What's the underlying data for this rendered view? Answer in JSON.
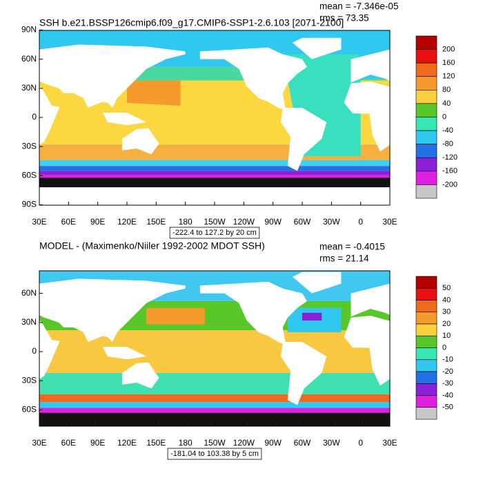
{
  "panels": [
    {
      "title": "SSH b.e21.BSSP126cmip6.f09_g17.CMIP6-SSP1-2.6.103 [2071-2100]",
      "mean": "mean = -7.346e-05",
      "rms": "rms = 73.35",
      "lat_labels": [
        "90N",
        "60N",
        "30N",
        "0",
        "30S",
        "60S",
        "90S"
      ],
      "lon_labels": [
        "30E",
        "60E",
        "90E",
        "120E",
        "150E",
        "180",
        "150W",
        "120W",
        "90W",
        "60W",
        "30W",
        "0",
        "30E"
      ],
      "range": "-222.4 to 127.2 by 20 cm",
      "colorbar": {
        "labels": [
          "200",
          "160",
          "120",
          "80",
          "40",
          "0",
          "-40",
          "-80",
          "-120",
          "-160",
          "-200"
        ],
        "colors": [
          "#b40000",
          "#e81010",
          "#f06a1e",
          "#f59a2c",
          "#fcd03c",
          "#58c828",
          "#38e8b4",
          "#30c8f0",
          "#2470e6",
          "#8a20d8",
          "#e020e0",
          "#c8c8c8"
        ]
      }
    },
    {
      "title": "MODEL - (Maximenko/Niiler 1992-2002 MDOT SSH)",
      "mean": "mean = -0.4015",
      "rms": "rms = 21.14",
      "lat_labels": [
        "60N",
        "30N",
        "0",
        "30S",
        "60S"
      ],
      "lon_labels": [
        "30E",
        "60E",
        "90E",
        "120E",
        "150E",
        "180",
        "150W",
        "120W",
        "90W",
        "60W",
        "30W",
        "0",
        "30E"
      ],
      "range": "-181.04 to 103.38 by 5 cm",
      "colorbar": {
        "labels": [
          "50",
          "40",
          "30",
          "20",
          "10",
          "0",
          "-10",
          "-20",
          "-30",
          "-40",
          "-50"
        ],
        "colors": [
          "#b40000",
          "#e81010",
          "#f06a1e",
          "#f59a2c",
          "#fcd03c",
          "#58c828",
          "#38e8b4",
          "#30c8f0",
          "#2470e6",
          "#8a20d8",
          "#e020e0",
          "#c8c8c8"
        ]
      }
    }
  ]
}
